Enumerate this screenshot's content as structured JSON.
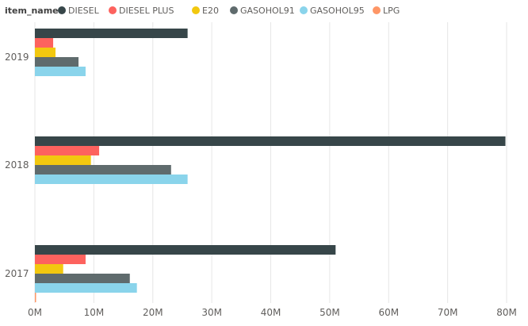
{
  "chart_data": {
    "type": "bar",
    "orientation": "horizontal",
    "legend_title": "item_name",
    "legend_position": "top-left",
    "categories": [
      "2019",
      "2018",
      "2017"
    ],
    "series": [
      {
        "name": "DIESEL",
        "color": "#374649",
        "values": [
          25.9,
          79.8,
          51.0
        ]
      },
      {
        "name": "DIESEL PLUS",
        "color": "#fd625e",
        "values": [
          3.1,
          10.9,
          8.6
        ]
      },
      {
        "name": "E20",
        "color": "#f2c80f",
        "values": [
          3.5,
          9.5,
          4.8
        ]
      },
      {
        "name": "GASOHOL91",
        "color": "#5f6b6d",
        "values": [
          7.4,
          23.1,
          16.1
        ]
      },
      {
        "name": "GASOHOL95",
        "color": "#8ad4eb",
        "values": [
          8.6,
          25.9,
          17.3
        ]
      },
      {
        "name": "LPG",
        "color": "#fe9666",
        "values": [
          0,
          0,
          0.2
        ]
      }
    ],
    "x_ticks": [
      "0M",
      "10M",
      "20M",
      "30M",
      "40M",
      "50M",
      "60M",
      "70M",
      "80M"
    ],
    "xlim": [
      0,
      80
    ],
    "grid": true
  }
}
